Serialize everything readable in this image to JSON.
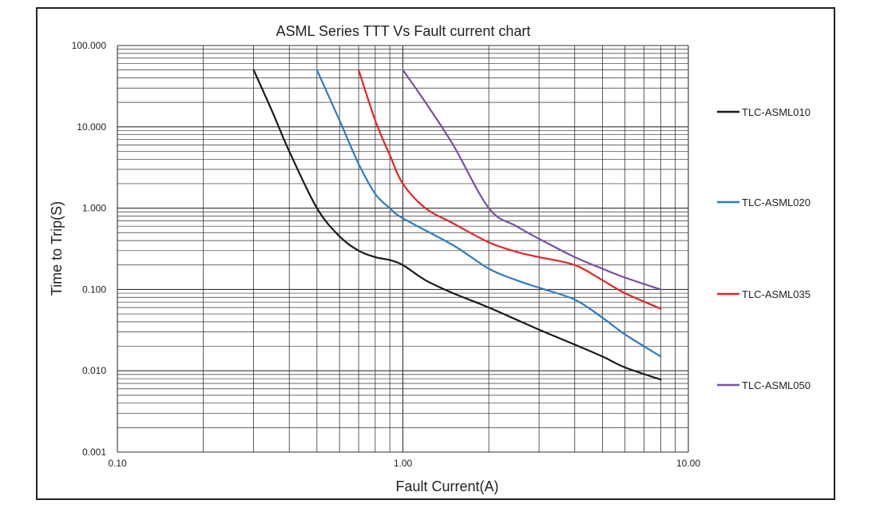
{
  "chart_data": {
    "type": "line",
    "title": "ASML Series TTT Vs Fault current chart",
    "xlabel": "Fault Current(A)",
    "ylabel": "Time to Trip(S)",
    "xscale": "log",
    "yscale": "log",
    "xlim": [
      0.1,
      10
    ],
    "ylim": [
      0.001,
      100
    ],
    "grid": true,
    "legend_position": "right",
    "x_tick_labels": [
      "0.10",
      "1.00",
      "10.00"
    ],
    "y_tick_labels": [
      "100.000",
      "10.000",
      "1.000",
      "0.100",
      "0.010",
      "0.001"
    ],
    "series": [
      {
        "name": "TLC-ASML010",
        "color": "#1a1a1a",
        "points": [
          [
            0.3,
            50
          ],
          [
            0.35,
            15
          ],
          [
            0.4,
            5
          ],
          [
            0.5,
            1.0
          ],
          [
            0.6,
            0.45
          ],
          [
            0.7,
            0.3
          ],
          [
            0.8,
            0.25
          ],
          [
            0.9,
            0.23
          ],
          [
            1.0,
            0.2
          ],
          [
            1.2,
            0.13
          ],
          [
            1.5,
            0.09
          ],
          [
            2.0,
            0.06
          ],
          [
            3.0,
            0.032
          ],
          [
            4.0,
            0.021
          ],
          [
            5.0,
            0.015
          ],
          [
            6.0,
            0.011
          ],
          [
            8.0,
            0.0078
          ]
        ]
      },
      {
        "name": "TLC-ASML020",
        "color": "#2e7bc4",
        "points": [
          [
            0.5,
            50
          ],
          [
            0.6,
            12
          ],
          [
            0.7,
            3.5
          ],
          [
            0.8,
            1.5
          ],
          [
            0.9,
            1.0
          ],
          [
            1.0,
            0.75
          ],
          [
            1.5,
            0.35
          ],
          [
            2.0,
            0.18
          ],
          [
            2.5,
            0.13
          ],
          [
            3.0,
            0.105
          ],
          [
            4.0,
            0.075
          ],
          [
            5.0,
            0.045
          ],
          [
            6.0,
            0.028
          ],
          [
            8.0,
            0.015
          ]
        ]
      },
      {
        "name": "TLC-ASML035",
        "color": "#e32626",
        "points": [
          [
            0.7,
            50
          ],
          [
            0.8,
            12
          ],
          [
            0.9,
            4.5
          ],
          [
            1.0,
            2.0
          ],
          [
            1.2,
            1.0
          ],
          [
            1.5,
            0.65
          ],
          [
            2.0,
            0.38
          ],
          [
            2.5,
            0.29
          ],
          [
            3.0,
            0.25
          ],
          [
            4.0,
            0.2
          ],
          [
            5.0,
            0.13
          ],
          [
            6.0,
            0.09
          ],
          [
            8.0,
            0.058
          ]
        ]
      },
      {
        "name": "TLC-ASML050",
        "color": "#7a4fa6",
        "points": [
          [
            1.0,
            50
          ],
          [
            1.2,
            20
          ],
          [
            1.5,
            6
          ],
          [
            2.0,
            1.0
          ],
          [
            2.5,
            0.6
          ],
          [
            3.0,
            0.42
          ],
          [
            4.0,
            0.25
          ],
          [
            5.0,
            0.18
          ],
          [
            6.0,
            0.14
          ],
          [
            8.0,
            0.1
          ]
        ]
      }
    ]
  }
}
